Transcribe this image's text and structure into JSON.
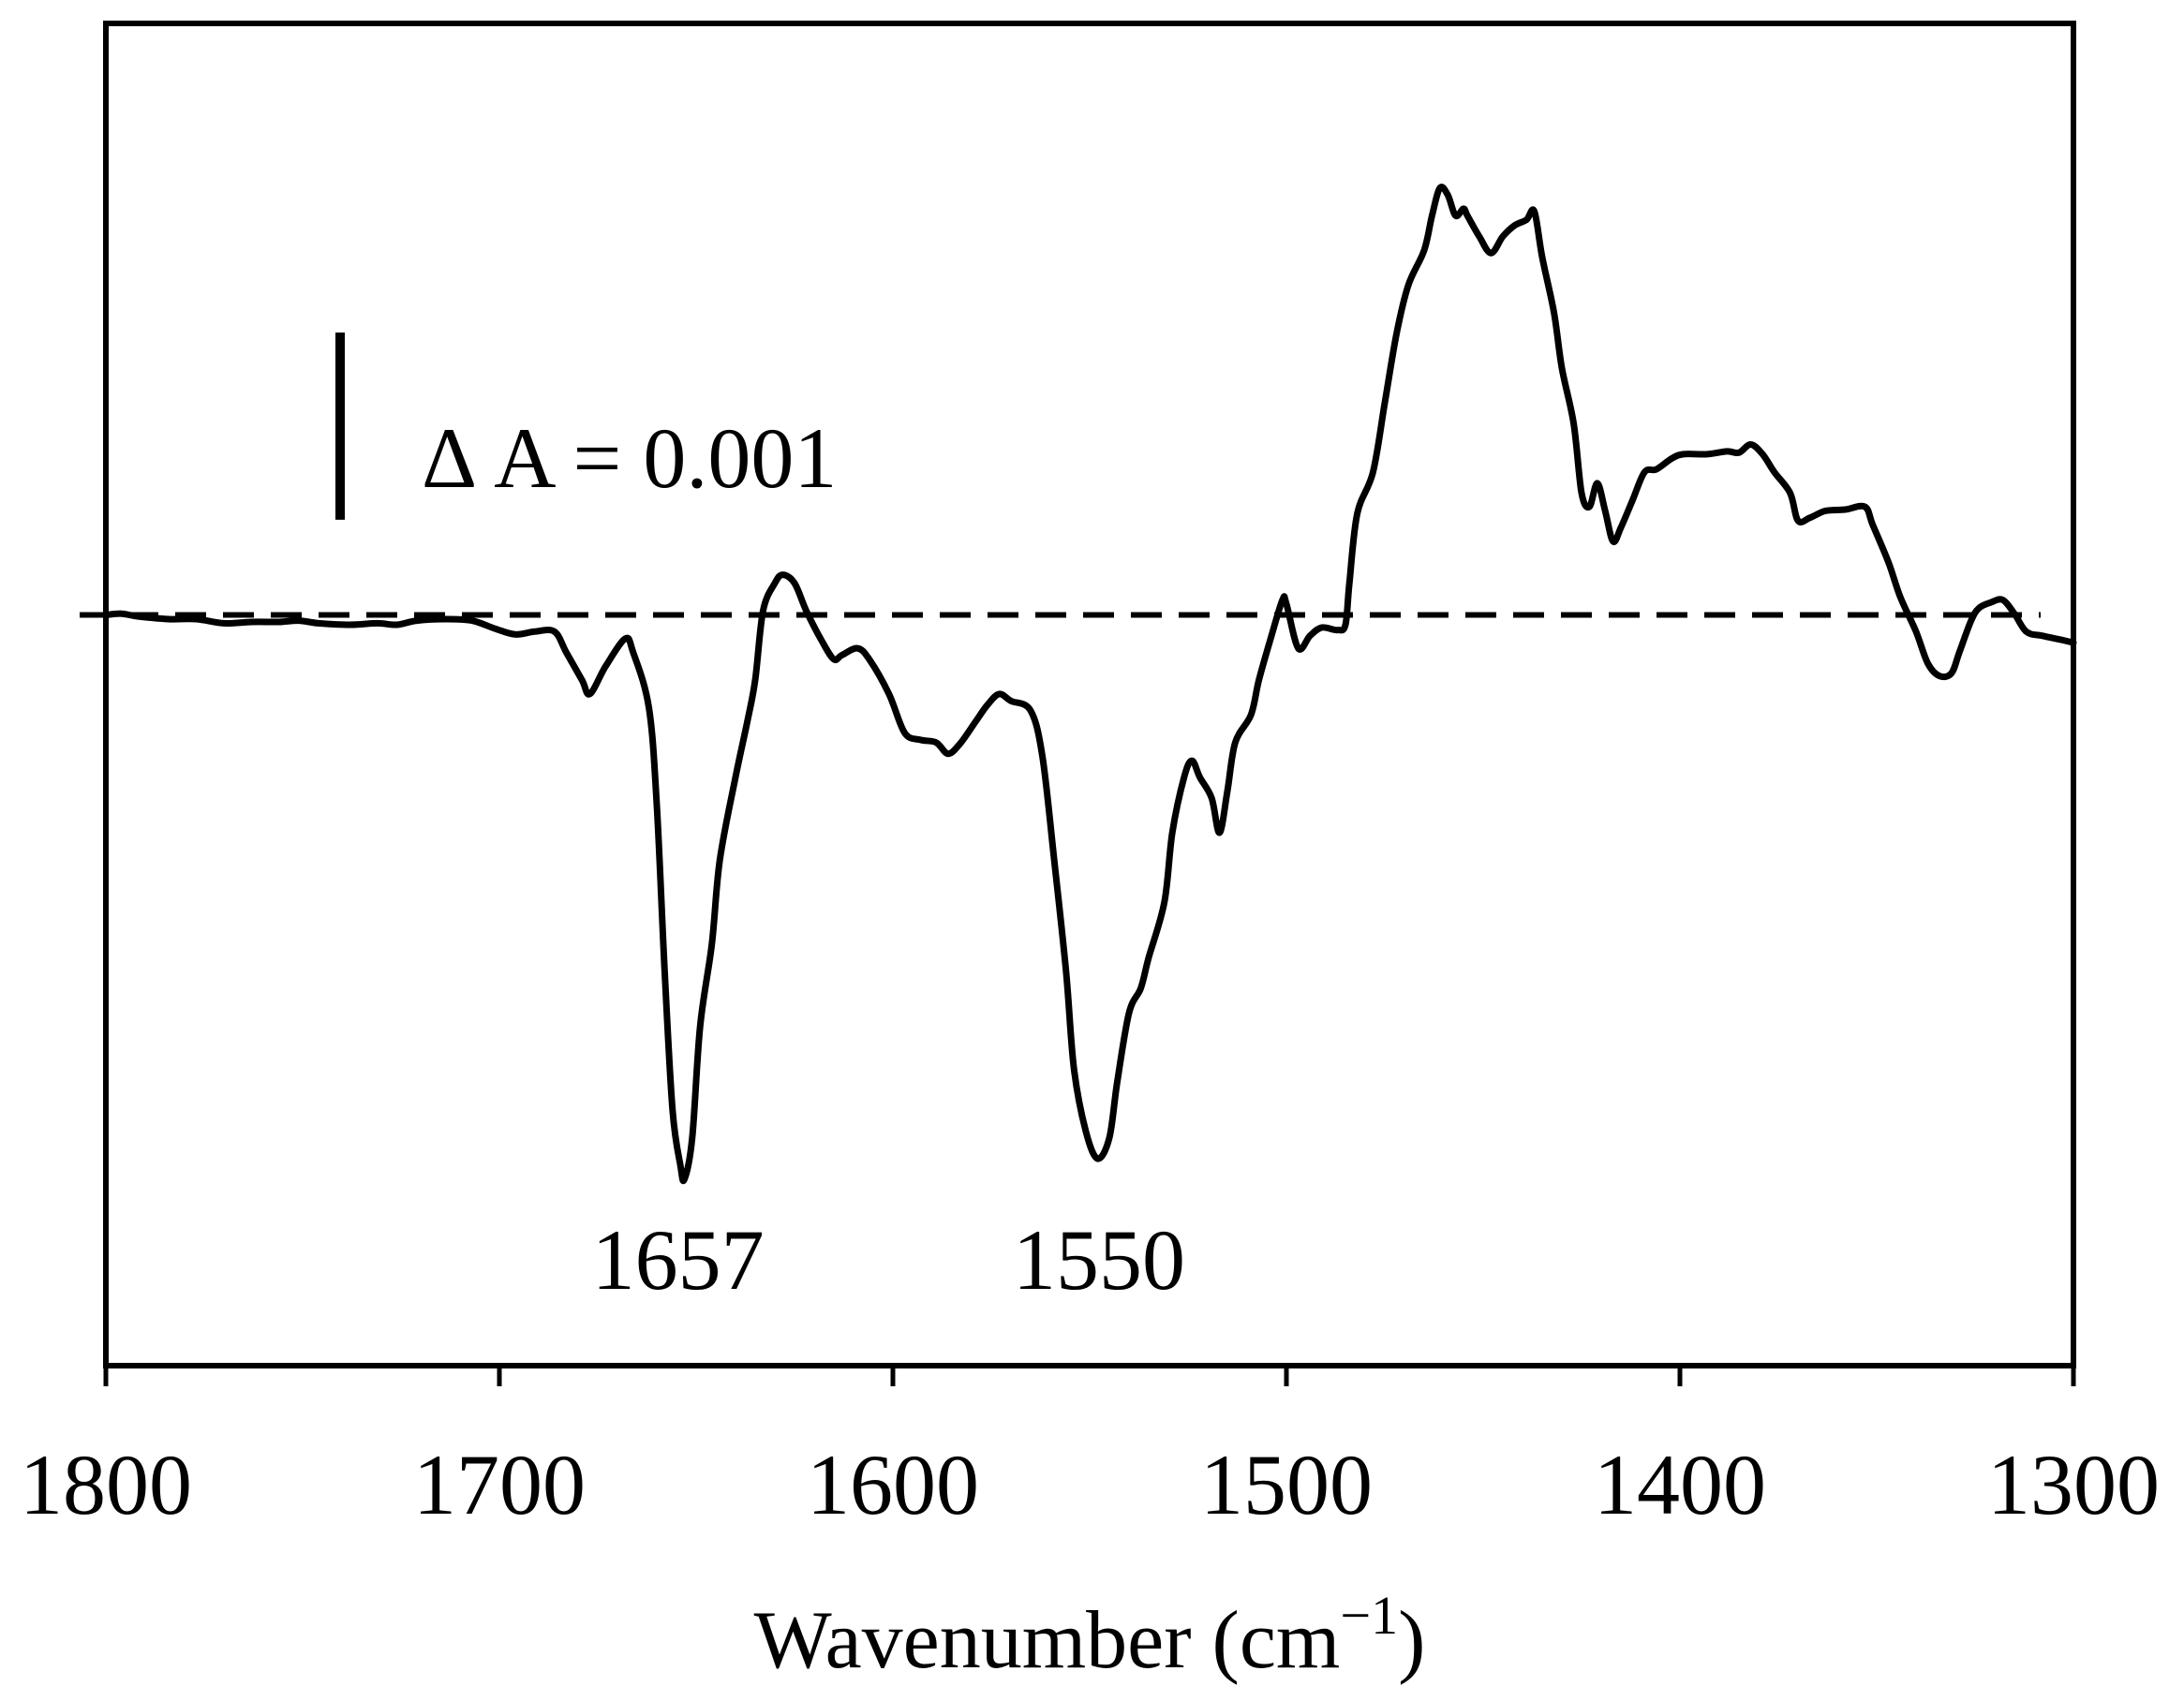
{
  "chart_data": {
    "type": "line",
    "xlabel": {
      "text": "Wavenumber (cm",
      "superscript": "−1",
      "suffix": ")"
    },
    "ylabel": "",
    "xlim": [
      1800,
      1300
    ],
    "ylim": [
      -0.00401,
      0.00316
    ],
    "xticks": [
      1800,
      1700,
      1600,
      1500,
      1400,
      1300
    ],
    "xtick_labels": [
      "1800",
      "1700",
      "1600",
      "1500",
      "1400",
      "1300"
    ],
    "grid": false,
    "line_color": "#000000",
    "reference_line": {
      "y": 0,
      "style": "dashed"
    },
    "scale_bar": {
      "label": "Δ A = 0.001",
      "value": 0.001
    },
    "annotations": [
      {
        "text": "1657",
        "x": 1657
      },
      {
        "text": "1550",
        "x": 1550
      }
    ],
    "x": [
      1800,
      1796,
      1792,
      1784,
      1777,
      1770,
      1763,
      1756,
      1751,
      1746,
      1738,
      1731,
      1726,
      1721,
      1714,
      1707,
      1701,
      1696,
      1691,
      1686,
      1683,
      1679,
      1677,
      1673,
      1668,
      1666,
      1662,
      1660,
      1658,
      1656,
      1654,
      1653,
      1651,
      1649,
      1646,
      1644,
      1640,
      1637,
      1635,
      1633,
      1630,
      1628,
      1625,
      1622,
      1618,
      1615,
      1613,
      1609,
      1606,
      1601,
      1597,
      1593,
      1589,
      1586,
      1583,
      1579,
      1576,
      1573,
      1570,
      1565,
      1562,
      1559,
      1556,
      1554,
      1551,
      1548,
      1545,
      1543,
      1540,
      1537,
      1535,
      1531,
      1529,
      1526,
      1524,
      1522,
      1519,
      1517,
      1515,
      1513,
      1509,
      1507,
      1504,
      1501,
      1500,
      1497,
      1494,
      1491,
      1487,
      1485,
      1484,
      1482,
      1478,
      1475,
      1472,
      1469,
      1465,
      1463,
      1461,
      1459,
      1457,
      1455,
      1454,
      1451,
      1448,
      1445,
      1442,
      1439,
      1437,
      1435,
      1432,
      1430,
      1427,
      1425,
      1423,
      1421,
      1419,
      1417,
      1415,
      1412,
      1409,
      1406,
      1402,
      1399,
      1393,
      1388,
      1385,
      1382,
      1379,
      1376,
      1372,
      1370,
      1367,
      1363,
      1358,
      1353,
      1351,
      1347,
      1344,
      1340,
      1337,
      1334,
      1331,
      1329,
      1326,
      1324,
      1321,
      1318,
      1315,
      1312,
      1308,
      1303,
      1300
    ],
    "series": [
      {
        "values": [
          0,
          7e-06,
          -7e-06,
          -2.2e-05,
          -2.2e-05,
          -4.4e-05,
          -3.7e-05,
          -3.7e-05,
          -3e-05,
          -4.4e-05,
          -5.2e-05,
          -4.4e-05,
          -5.2e-05,
          -3e-05,
          -2.2e-05,
          -3e-05,
          -7.4e-05,
          -0.000104,
          -8.9e-05,
          -8.9e-05,
          -0.0002,
          -0.000348,
          -0.000422,
          -0.000274,
          -0.000126,
          -0.0002,
          -0.000496,
          -0.001015,
          -0.001904,
          -0.002644,
          -0.002941,
          -0.003015,
          -0.002793,
          -0.0022,
          -0.001756,
          -0.001311,
          -0.000867,
          -0.00057,
          -0.000348,
          2.2e-05,
          0.00017,
          0.000215,
          0.00017,
          2.2e-05,
          -0.000141,
          -0.000237,
          -0.000215,
          -0.000178,
          -0.000237,
          -0.000422,
          -0.00063,
          -0.000667,
          -0.000681,
          -0.000741,
          -0.000689,
          -0.00057,
          -0.000481,
          -0.000422,
          -0.000459,
          -0.000511,
          -0.000756,
          -0.001311,
          -0.001904,
          -0.002422,
          -0.002756,
          -0.002904,
          -0.002793,
          -0.002496,
          -0.002126,
          -0.001993,
          -0.00183,
          -0.001533,
          -0.001163,
          -0.000867,
          -0.000778,
          -0.000867,
          -0.000978,
          -0.001163,
          -0.000941,
          -0.000681,
          -0.000533,
          -0.000348,
          -0.000126,
          8.1e-05,
          5.9e-05,
          -0.000178,
          -0.000111,
          -6.7e-05,
          -8.1e-05,
          -5.2e-05,
          0.00017,
          0.000541,
          0.000763,
          0.001133,
          0.001504,
          0.001763,
          0.001948,
          0.002133,
          0.002281,
          0.002244,
          0.002133,
          0.00217,
          0.002133,
          0.002022,
          0.001933,
          0.002022,
          0.002081,
          0.002111,
          0.002156,
          0.001911,
          0.001615,
          0.001319,
          0.001022,
          0.000652,
          0.000578,
          0.000704,
          0.000556,
          0.000393,
          0.000467,
          0.000615,
          0.000763,
          0.000778,
          0.000837,
          0.000859,
          0.000859,
          0.000874,
          0.000867,
          0.000911,
          0.000859,
          0.000763,
          0.000652,
          0.000504,
          0.000519,
          0.000556,
          0.000563,
          0.000578,
          0.000481,
          0.000281,
          9.6e-05,
          -8.9e-05,
          -0.000259,
          -0.000326,
          -0.000311,
          -0.0002,
          -3e-05,
          3.7e-05,
          6.7e-05,
          8.1e-05,
          7e-06,
          -8.9e-05,
          -0.000111,
          -0.000133,
          -0.000148
        ]
      }
    ]
  }
}
